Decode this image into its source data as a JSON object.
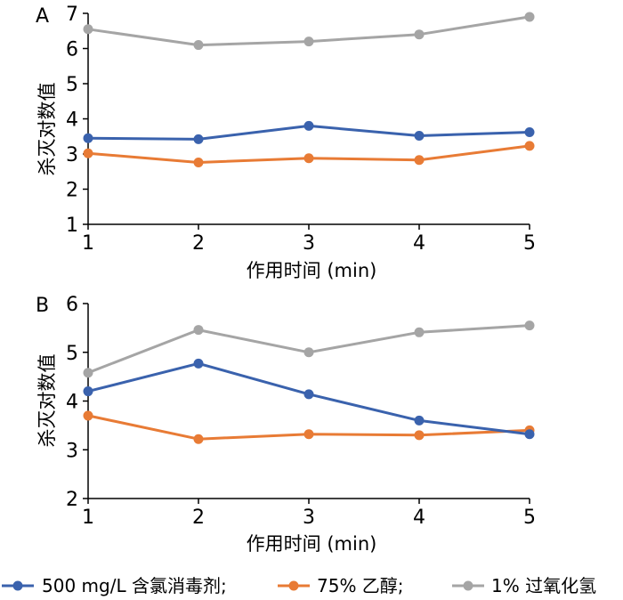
{
  "chart_data": [
    {
      "type": "line",
      "panel_label": "A",
      "x": [
        1,
        2,
        3,
        4,
        5
      ],
      "xlim": [
        1,
        5
      ],
      "ylim": [
        1,
        7
      ],
      "xticks": [
        "1",
        "2",
        "3",
        "4",
        "5"
      ],
      "yticks": [
        "1",
        "2",
        "3",
        "4",
        "5",
        "6",
        "7"
      ],
      "xlabel": "作用时间 (min)",
      "ylabel": "杀灭对数值",
      "grid": false,
      "series": [
        {
          "name": "500 mg/L 含氯消毒剂",
          "color": "#3a62ad",
          "values": [
            3.45,
            3.42,
            3.8,
            3.52,
            3.62
          ]
        },
        {
          "name": "75% 乙醇",
          "color": "#e87b35",
          "values": [
            3.02,
            2.76,
            2.88,
            2.83,
            3.23
          ]
        },
        {
          "name": "1% 过氧化氢",
          "color": "#a5a5a5",
          "values": [
            6.55,
            6.1,
            6.2,
            6.4,
            6.9
          ]
        }
      ]
    },
    {
      "type": "line",
      "panel_label": "B",
      "x": [
        1,
        2,
        3,
        4,
        5
      ],
      "xlim": [
        1,
        5
      ],
      "ylim": [
        2,
        6
      ],
      "xticks": [
        "1",
        "2",
        "3",
        "4",
        "5"
      ],
      "yticks": [
        "2",
        "3",
        "4",
        "5",
        "6"
      ],
      "xlabel": "作用时间 (min)",
      "ylabel": "杀灭对数值",
      "grid": false,
      "series": [
        {
          "name": "500 mg/L 含氯消毒剂",
          "color": "#3a62ad",
          "values": [
            4.2,
            4.77,
            4.14,
            3.6,
            3.32
          ]
        },
        {
          "name": "75% 乙醇",
          "color": "#e87b35",
          "values": [
            3.7,
            3.22,
            3.32,
            3.3,
            3.4
          ]
        },
        {
          "name": "1% 过氧化氢",
          "color": "#a5a5a5",
          "values": [
            4.58,
            5.46,
            5.0,
            5.41,
            5.55
          ]
        }
      ]
    }
  ],
  "legend": {
    "placement": "bottom",
    "items": [
      {
        "label": "500 mg/L 含氯消毒剂;",
        "color": "#3a62ad"
      },
      {
        "label": "75% 乙醇;",
        "color": "#e87b35"
      },
      {
        "label": "1% 过氧化氢",
        "color": "#a5a5a5"
      }
    ]
  }
}
